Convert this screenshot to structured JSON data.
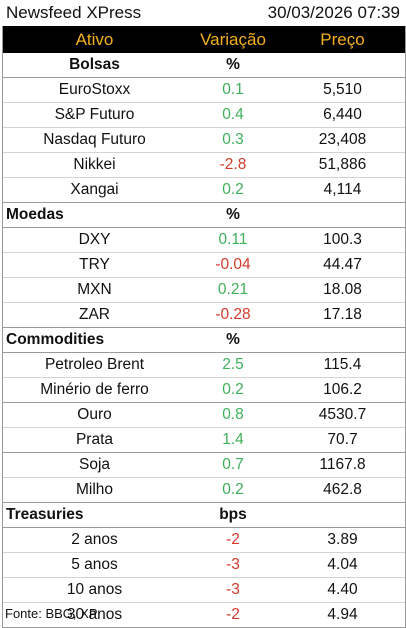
{
  "header": {
    "title": "Newsfeed XPress",
    "datetime": "30/03/2026 07:39"
  },
  "columns": {
    "asset": "Ativo",
    "change": "Variação",
    "price": "Preço"
  },
  "sections": [
    {
      "title": "Bolsas",
      "unit": "%",
      "center": true,
      "rows": [
        {
          "name": "EuroStoxx",
          "change": "0.1",
          "dir": "up",
          "price": "5,510"
        },
        {
          "name": "S&P Futuro",
          "change": "0.4",
          "dir": "up",
          "price": "6,440"
        },
        {
          "name": "Nasdaq Futuro",
          "change": "0.3",
          "dir": "up",
          "price": "23,408"
        },
        {
          "name": "Nikkei",
          "change": "-2.8",
          "dir": "down",
          "price": "51,886"
        },
        {
          "name": "Xangai",
          "change": "0.2",
          "dir": "up",
          "price": "4,114"
        }
      ]
    },
    {
      "title": "Moedas",
      "unit": "%",
      "center": false,
      "rows": [
        {
          "name": "DXY",
          "change": "0.11",
          "dir": "up",
          "price": "100.3"
        },
        {
          "name": "TRY",
          "change": "-0.04",
          "dir": "down",
          "price": "44.47"
        },
        {
          "name": "MXN",
          "change": "0.21",
          "dir": "up",
          "price": "18.08"
        },
        {
          "name": "ZAR",
          "change": "-0.28",
          "dir": "down",
          "price": "17.18"
        }
      ]
    },
    {
      "title": "Commodities",
      "unit": "%",
      "center": false,
      "rows": [
        {
          "name": "Petroleo Brent",
          "change": "2.5",
          "dir": "up",
          "price": "115.4"
        },
        {
          "name": "Minério de ferro",
          "change": "0.2",
          "dir": "up",
          "price": "106.2",
          "groupEnd": true
        },
        {
          "name": "Ouro",
          "change": "0.8",
          "dir": "up",
          "price": "4530.7"
        },
        {
          "name": "Prata",
          "change": "1.4",
          "dir": "up",
          "price": "70.7",
          "groupEnd": true
        },
        {
          "name": "Soja",
          "change": "0.7",
          "dir": "up",
          "price": "1167.8"
        },
        {
          "name": "Milho",
          "change": "0.2",
          "dir": "up",
          "price": "462.8"
        }
      ]
    },
    {
      "title": "Treasuries",
      "unit": "bps",
      "center": false,
      "rows": [
        {
          "name": "2 anos",
          "change": "-2",
          "dir": "down",
          "price": "3.89"
        },
        {
          "name": "5 anos",
          "change": "-3",
          "dir": "down",
          "price": "4.04"
        },
        {
          "name": "10 anos",
          "change": "-3",
          "dir": "down",
          "price": "4.40"
        },
        {
          "name": "30 anos",
          "change": "-2",
          "dir": "down",
          "price": "4.94"
        }
      ]
    }
  ],
  "footer": "Fonte: BBG, XP",
  "colors": {
    "header_bg": "#000000",
    "header_text": "#f2b01e",
    "positive": "#3fb05a",
    "negative": "#d33a2c"
  }
}
